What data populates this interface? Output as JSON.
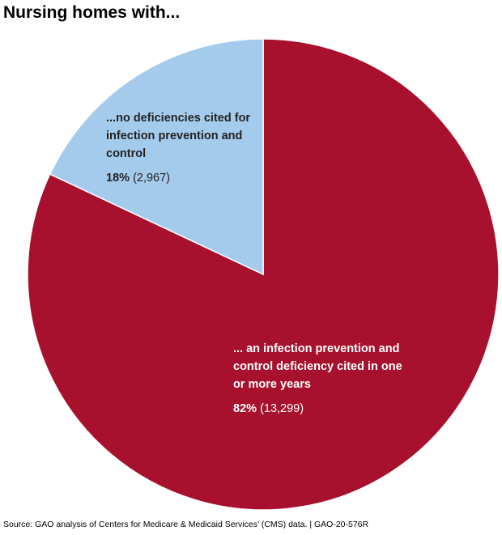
{
  "chart_data": {
    "type": "pie",
    "title": "Nursing homes with...",
    "categories": [
      "... an infection prevention and control deficiency cited in one or more years",
      "...no deficiencies cited for infection prevention and control"
    ],
    "values": [
      82,
      18
    ],
    "value_labels": [
      "82%",
      "18%"
    ],
    "counts": [
      13299,
      2967
    ],
    "count_labels": [
      "(13,299)",
      "(2,967)"
    ],
    "colors": [
      "#a8112e",
      "#a5cbec"
    ],
    "source": "Source: GAO analysis of Centers for Medicare & Medicaid Services’ (CMS) data.  |  GAO-20-576R"
  }
}
